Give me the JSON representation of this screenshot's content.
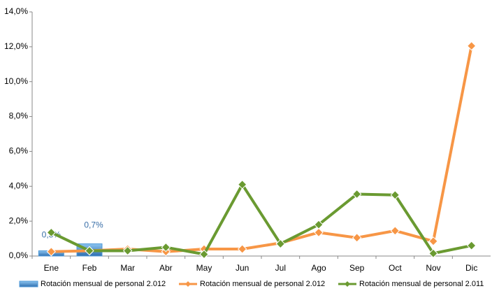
{
  "chart_data": {
    "type": "bar_line",
    "categories": [
      "Ene",
      "Feb",
      "Mar",
      "Abr",
      "May",
      "Jun",
      "Jul",
      "Ago",
      "Sep",
      "Oct",
      "Nov",
      "Dic"
    ],
    "series": [
      {
        "name": "Rotación mensual de personal 2.012",
        "type": "bar",
        "color": "#4f9ad8",
        "values": [
          0.3,
          0.7,
          null,
          null,
          null,
          null,
          null,
          null,
          null,
          null,
          null,
          null
        ],
        "value_labels": [
          "0,3%",
          "0,7%",
          null,
          null,
          null,
          null,
          null,
          null,
          null,
          null,
          null,
          null
        ]
      },
      {
        "name": "Rotación mensual de personal 2.012",
        "type": "line",
        "color": "#f79646",
        "values": [
          0.25,
          0.3,
          0.4,
          0.25,
          0.4,
          0.4,
          0.75,
          1.35,
          1.05,
          1.45,
          0.85,
          12.05
        ]
      },
      {
        "name": "Rotación mensual de personal 2.011",
        "type": "line",
        "color": "#6a9a31",
        "values": [
          1.35,
          0.3,
          0.3,
          0.5,
          0.1,
          4.1,
          0.7,
          1.8,
          3.55,
          3.5,
          0.15,
          0.6
        ]
      }
    ],
    "ylim": [
      0,
      14
    ],
    "yticks": [
      {
        "value": 0,
        "label": "0,0%"
      },
      {
        "value": 2,
        "label": "2,0%"
      },
      {
        "value": 4,
        "label": "4,0%"
      },
      {
        "value": 6,
        "label": "6,0%"
      },
      {
        "value": 8,
        "label": "8,0%"
      },
      {
        "value": 10,
        "label": "10,0%"
      },
      {
        "value": 12,
        "label": "12,0%"
      },
      {
        "value": 14,
        "label": "14,0%"
      }
    ],
    "grid": false,
    "legend": "bottom"
  }
}
